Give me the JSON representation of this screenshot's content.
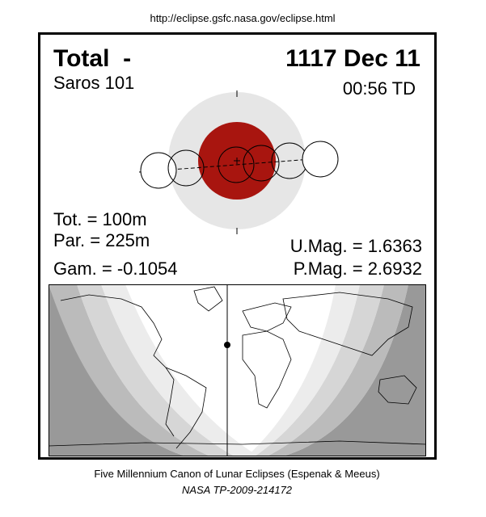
{
  "header": {
    "url": "http://eclipse.gsfc.nasa.gov/eclipse.html"
  },
  "eclipse": {
    "type": "Total  -",
    "date": "1117 Dec 11",
    "saros": "Saros 101",
    "time": "00:56 TD",
    "tot": "Tot. = 100m",
    "par": "Par. = 225m",
    "gam": "Gam. = -0.1054",
    "umag": "U.Mag. = 1.6363",
    "pmag": "P.Mag. = 2.6932"
  },
  "footer": {
    "title": "Five Millennium Canon of Lunar Eclipses (Espenak & Meeus)",
    "ref": "NASA TP-2009-214172"
  }
}
